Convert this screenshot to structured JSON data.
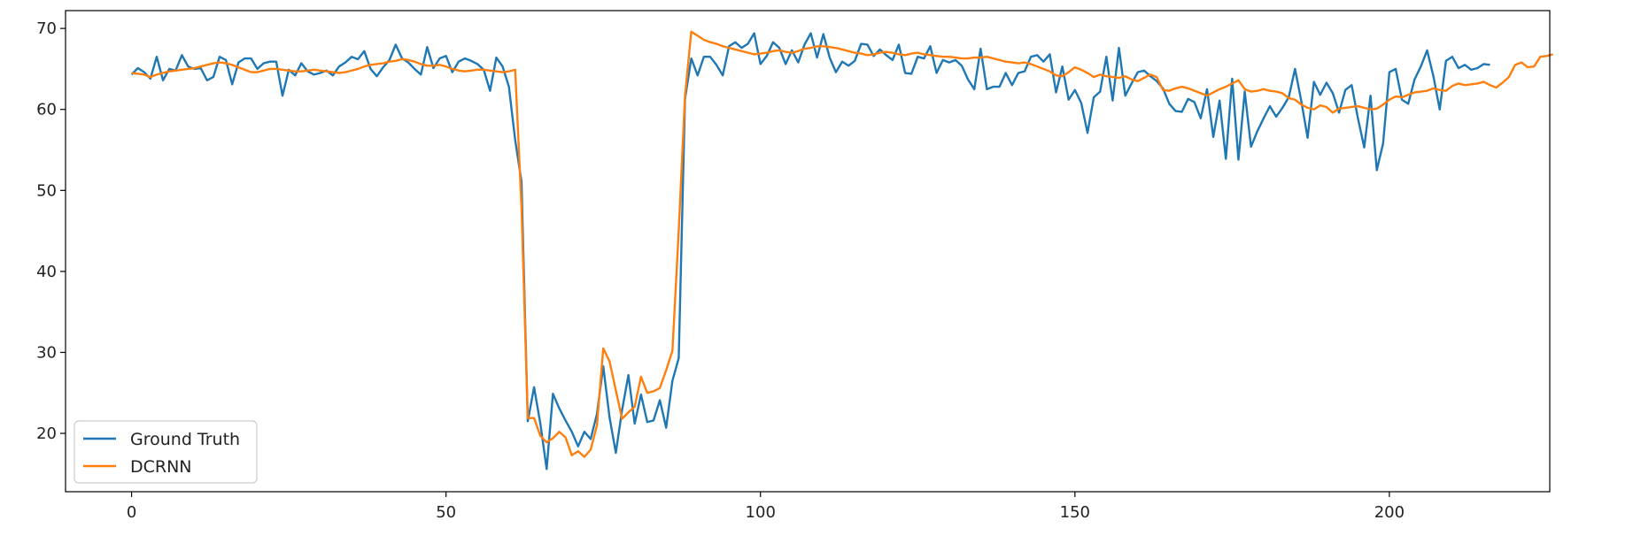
{
  "chart_data": {
    "type": "line",
    "title": "",
    "xlabel": "",
    "ylabel": "",
    "xlim": [
      -10.5,
      225.5
    ],
    "ylim": [
      12.8,
      72.2
    ],
    "xticks": [
      0,
      50,
      100,
      150,
      200
    ],
    "yticks": [
      20,
      30,
      40,
      50,
      60,
      70
    ],
    "grid": false,
    "legend_position": "lower-left",
    "series": [
      {
        "name": "Ground Truth",
        "color": "#1f77b4",
        "values": [
          64.3,
          65.1,
          64.6,
          63.8,
          66.5,
          63.6,
          65.0,
          64.8,
          66.7,
          65.3,
          65.0,
          65.1,
          63.6,
          64.0,
          66.5,
          66.1,
          63.1,
          65.8,
          66.3,
          66.3,
          65.0,
          65.7,
          65.9,
          65.9,
          61.7,
          64.9,
          64.2,
          65.7,
          64.7,
          64.3,
          64.5,
          64.8,
          64.2,
          65.3,
          65.8,
          66.5,
          66.2,
          67.2,
          65.0,
          64.1,
          65.2,
          66.1,
          68.0,
          66.3,
          65.8,
          65.0,
          64.3,
          67.7,
          65.1,
          66.3,
          66.6,
          64.6,
          65.9,
          66.3,
          66.0,
          65.6,
          64.9,
          62.3,
          66.4,
          65.3,
          62.8,
          56.2,
          51.1,
          21.5,
          25.7,
          21.2,
          15.6,
          24.9,
          23.1,
          21.6,
          20.2,
          18.4,
          20.2,
          19.3,
          22.4,
          28.3,
          22.0,
          17.6,
          22.9,
          27.2,
          21.2,
          24.8,
          21.4,
          21.6,
          24.1,
          20.7,
          26.5,
          29.3,
          61.3,
          66.3,
          64.2,
          66.5,
          66.5,
          65.5,
          64.2,
          67.8,
          68.3,
          67.6,
          68.1,
          69.4,
          65.6,
          66.6,
          68.3,
          67.6,
          65.6,
          67.3,
          65.8,
          68.0,
          69.4,
          66.4,
          69.3,
          66.4,
          64.6,
          65.9,
          65.4,
          66.0,
          68.1,
          68.0,
          66.6,
          67.4,
          66.7,
          66.1,
          68.0,
          64.5,
          64.4,
          66.5,
          66.3,
          67.8,
          64.5,
          66.1,
          65.8,
          66.1,
          65.4,
          63.7,
          62.5,
          67.5,
          62.5,
          62.8,
          62.8,
          64.5,
          63.0,
          64.5,
          64.7,
          66.5,
          66.7,
          65.9,
          66.8,
          62.1,
          65.3,
          61.2,
          62.4,
          60.8,
          57.1,
          61.5,
          62.2,
          66.5,
          61.1,
          67.6,
          61.7,
          63.2,
          64.6,
          64.8,
          64.1,
          63.5,
          62.6,
          60.7,
          59.8,
          59.7,
          61.3,
          60.9,
          58.9,
          62.5,
          56.6,
          61.1,
          53.9,
          63.8,
          53.8,
          62.2,
          55.4,
          57.3,
          58.9,
          60.4,
          59.1,
          60.2,
          61.5,
          65.0,
          61.0,
          56.5,
          63.4,
          61.8,
          63.3,
          62.0,
          59.6,
          62.4,
          63.0,
          58.9,
          55.3,
          61.7,
          52.5,
          55.8,
          64.6,
          65.0,
          61.2,
          60.7,
          63.7,
          65.3,
          67.3,
          64.1,
          60.0,
          66.0,
          66.5,
          65.1,
          65.5,
          64.9,
          65.1,
          65.6,
          65.5
        ]
      },
      {
        "name": "DCRNN",
        "color": "#ff7f0e",
        "values": [
          64.5,
          64.4,
          64.3,
          64.0,
          64.3,
          64.5,
          64.7,
          64.8,
          64.9,
          65.0,
          65.1,
          65.3,
          65.5,
          65.7,
          65.8,
          65.7,
          65.5,
          65.2,
          64.9,
          64.6,
          64.6,
          64.8,
          65.0,
          65.0,
          64.9,
          64.8,
          64.7,
          64.7,
          64.8,
          64.9,
          64.8,
          64.7,
          64.6,
          64.5,
          64.6,
          64.8,
          65.0,
          65.3,
          65.5,
          65.6,
          65.7,
          65.9,
          66.0,
          66.2,
          66.1,
          65.9,
          65.6,
          65.4,
          65.4,
          65.5,
          65.3,
          65.0,
          64.8,
          64.7,
          64.8,
          64.9,
          64.9,
          64.8,
          64.7,
          64.6,
          64.7,
          64.9,
          48.0,
          21.9,
          21.9,
          19.7,
          18.9,
          19.4,
          20.2,
          19.5,
          17.3,
          17.8,
          17.1,
          18.0,
          21.0,
          30.5,
          28.9,
          25.3,
          21.8,
          22.6,
          23.3,
          27.0,
          25.0,
          25.2,
          25.6,
          27.8,
          30.2,
          45.0,
          61.7,
          69.6,
          69.1,
          68.6,
          68.3,
          68.1,
          67.8,
          67.6,
          67.4,
          67.2,
          67.0,
          66.8,
          66.9,
          67.0,
          67.2,
          67.3,
          67.1,
          67.0,
          67.2,
          67.5,
          67.6,
          67.8,
          67.8,
          67.7,
          67.6,
          67.4,
          67.2,
          67.0,
          66.9,
          66.7,
          66.8,
          67.0,
          67.1,
          67.0,
          66.8,
          66.7,
          66.9,
          67.0,
          66.8,
          66.7,
          66.6,
          66.5,
          66.5,
          66.4,
          66.3,
          66.3,
          66.4,
          66.4,
          66.5,
          66.3,
          66.1,
          65.9,
          65.8,
          65.7,
          65.8,
          65.6,
          65.3,
          65.0,
          64.7,
          64.2,
          64.1,
          64.6,
          65.2,
          64.9,
          64.5,
          64.0,
          64.3,
          64.1,
          64.0,
          63.9,
          64.1,
          63.7,
          63.5,
          63.9,
          64.3,
          64.0,
          62.4,
          62.3,
          62.6,
          62.8,
          62.6,
          62.3,
          62.0,
          61.7,
          62.1,
          62.5,
          62.8,
          63.2,
          63.6,
          62.5,
          62.2,
          62.3,
          62.5,
          62.3,
          62.2,
          62.0,
          61.4,
          61.2,
          60.6,
          60.2,
          60.0,
          60.5,
          60.3,
          59.6,
          60.1,
          60.2,
          60.3,
          60.4,
          60.2,
          60.0,
          60.1,
          60.6,
          61.2,
          61.6,
          61.5,
          61.8,
          62.1,
          62.2,
          62.3,
          62.6,
          62.4,
          62.3,
          62.9,
          63.2,
          63.0,
          63.1,
          63.2,
          63.4,
          63.0,
          62.7,
          63.3,
          64.0,
          65.5,
          65.8,
          65.2,
          65.3,
          66.5,
          66.6,
          66.8
        ]
      }
    ]
  }
}
